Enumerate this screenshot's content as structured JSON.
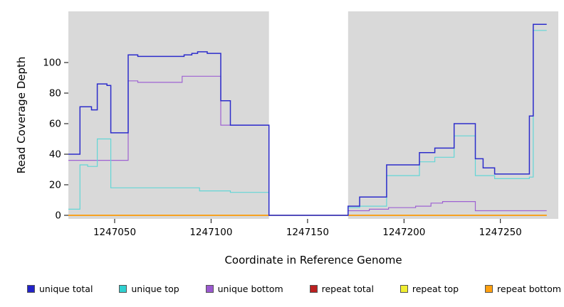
{
  "chart_data": {
    "type": "line",
    "title": "",
    "xlabel": "Coordinate in Reference Genome",
    "ylabel": "Read Coverage Depth",
    "xlim": [
      1247026,
      1247280
    ],
    "ylim": [
      0,
      133
    ],
    "xticks": [
      1247050,
      1247100,
      1247150,
      1247200,
      1247250
    ],
    "yticks": [
      0,
      20,
      40,
      60,
      80,
      100
    ],
    "grid": false,
    "step": "after",
    "legend_position": "bottom",
    "plot_bg": "#ffffff",
    "shaded_regions": [
      {
        "x0": 1247026,
        "x1": 1247130,
        "color": "#d9d9d9"
      },
      {
        "x0": 1247171,
        "x1": 1247280,
        "color": "#d9d9d9"
      }
    ],
    "series": [
      {
        "name": "repeat total",
        "color": "#c22121",
        "width": 1.2,
        "points": [
          [
            1247026,
            0
          ],
          [
            1247274,
            0
          ]
        ]
      },
      {
        "name": "repeat top",
        "color": "#f2ee2f",
        "width": 1.2,
        "points": [
          [
            1247026,
            0
          ],
          [
            1247274,
            0
          ]
        ]
      },
      {
        "name": "repeat bottom",
        "color": "#ff9a00",
        "width": 1.5,
        "points": [
          [
            1247026,
            0
          ],
          [
            1247274,
            0
          ]
        ]
      },
      {
        "name": "unique bottom",
        "color": "#9e62d2",
        "width": 1.2,
        "points": [
          [
            1247026,
            36
          ],
          [
            1247057,
            88
          ],
          [
            1247062,
            87
          ],
          [
            1247085,
            91
          ],
          [
            1247105,
            59
          ],
          [
            1247130,
            0
          ],
          [
            1247171,
            3
          ],
          [
            1247182,
            4
          ],
          [
            1247192,
            5
          ],
          [
            1247206,
            6
          ],
          [
            1247214,
            8
          ],
          [
            1247220,
            9
          ],
          [
            1247237,
            3
          ],
          [
            1247274,
            3
          ]
        ]
      },
      {
        "name": "unique top",
        "color": "#63d6d6",
        "width": 1.2,
        "points": [
          [
            1247026,
            4
          ],
          [
            1247032,
            33
          ],
          [
            1247036,
            32
          ],
          [
            1247041,
            50
          ],
          [
            1247048,
            18
          ],
          [
            1247090,
            18
          ],
          [
            1247094,
            16
          ],
          [
            1247110,
            15
          ],
          [
            1247130,
            0
          ],
          [
            1247171,
            5
          ],
          [
            1247177,
            6
          ],
          [
            1247191,
            26
          ],
          [
            1247208,
            35
          ],
          [
            1247216,
            38
          ],
          [
            1247226,
            52
          ],
          [
            1247237,
            26
          ],
          [
            1247247,
            24
          ],
          [
            1247265,
            25
          ],
          [
            1247267,
            121
          ],
          [
            1247274,
            121
          ]
        ]
      },
      {
        "name": "unique total",
        "color": "#2d2dcb",
        "width": 1.5,
        "points": [
          [
            1247026,
            40
          ],
          [
            1247032,
            71
          ],
          [
            1247038,
            69
          ],
          [
            1247041,
            86
          ],
          [
            1247046,
            85
          ],
          [
            1247048,
            54
          ],
          [
            1247057,
            105
          ],
          [
            1247062,
            104
          ],
          [
            1247086,
            105
          ],
          [
            1247090,
            106
          ],
          [
            1247093,
            107
          ],
          [
            1247098,
            106
          ],
          [
            1247105,
            75
          ],
          [
            1247110,
            59
          ],
          [
            1247130,
            0
          ],
          [
            1247171,
            6
          ],
          [
            1247177,
            12
          ],
          [
            1247191,
            33
          ],
          [
            1247208,
            41
          ],
          [
            1247216,
            44
          ],
          [
            1247226,
            60
          ],
          [
            1247237,
            37
          ],
          [
            1247241,
            31
          ],
          [
            1247247,
            27
          ],
          [
            1247265,
            65
          ],
          [
            1247267,
            125
          ],
          [
            1247274,
            125
          ]
        ]
      }
    ]
  },
  "legend": {
    "items": [
      {
        "label": "unique total",
        "color": "#2222c8"
      },
      {
        "label": "unique top",
        "color": "#2fd0d0"
      },
      {
        "label": "unique bottom",
        "color": "#9b59d0"
      },
      {
        "label": "repeat total",
        "color": "#bb2020"
      },
      {
        "label": "repeat top",
        "color": "#f0ee30"
      },
      {
        "label": "repeat bottom",
        "color": "#ffa010"
      }
    ]
  }
}
